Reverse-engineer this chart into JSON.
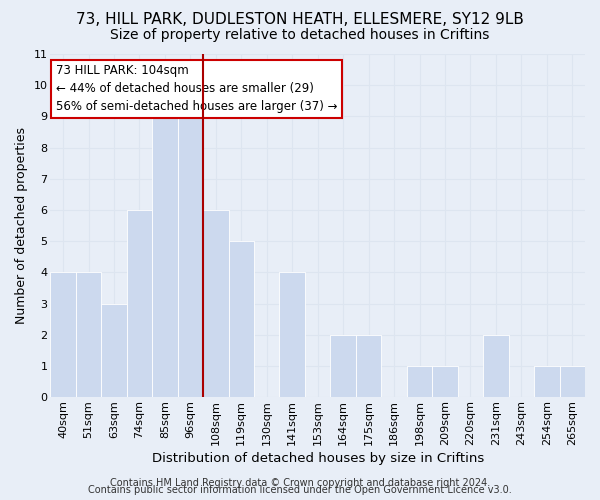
{
  "title": "73, HILL PARK, DUDLESTON HEATH, ELLESMERE, SY12 9LB",
  "subtitle": "Size of property relative to detached houses in Criftins",
  "xlabel": "Distribution of detached houses by size in Criftins",
  "ylabel": "Number of detached properties",
  "bar_labels": [
    "40sqm",
    "51sqm",
    "63sqm",
    "74sqm",
    "85sqm",
    "96sqm",
    "108sqm",
    "119sqm",
    "130sqm",
    "141sqm",
    "153sqm",
    "164sqm",
    "175sqm",
    "186sqm",
    "198sqm",
    "209sqm",
    "220sqm",
    "231sqm",
    "243sqm",
    "254sqm",
    "265sqm"
  ],
  "bar_values": [
    4,
    4,
    3,
    6,
    9,
    9,
    6,
    5,
    0,
    4,
    0,
    2,
    2,
    0,
    1,
    1,
    0,
    2,
    0,
    1,
    1
  ],
  "bar_color": "#ccd9ee",
  "bar_edge_color": "#ffffff",
  "grid_color": "#dde5f0",
  "bg_color": "#e8eef7",
  "vline_color": "#aa0000",
  "annotation_title": "73 HILL PARK: 104sqm",
  "annotation_line1": "← 44% of detached houses are smaller (29)",
  "annotation_line2": "56% of semi-detached houses are larger (37) →",
  "annotation_box_color": "#ffffff",
  "annotation_box_edge": "#cc0000",
  "ylim": [
    0,
    11
  ],
  "yticks": [
    0,
    1,
    2,
    3,
    4,
    5,
    6,
    7,
    8,
    9,
    10,
    11
  ],
  "footer1": "Contains HM Land Registry data © Crown copyright and database right 2024.",
  "footer2": "Contains public sector information licensed under the Open Government Licence v3.0.",
  "title_fontsize": 11,
  "subtitle_fontsize": 10,
  "xlabel_fontsize": 9.5,
  "ylabel_fontsize": 9,
  "tick_fontsize": 8,
  "footer_fontsize": 7,
  "ann_fontsize": 8.5
}
